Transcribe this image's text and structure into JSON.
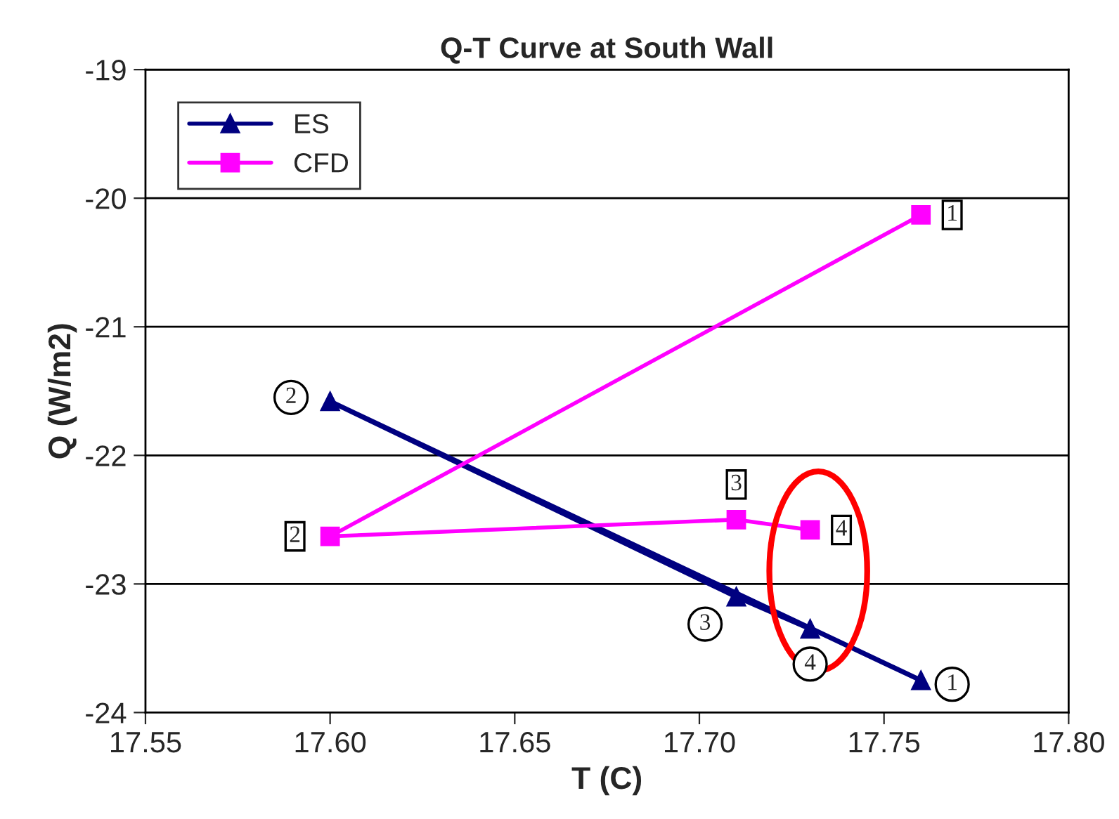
{
  "chart_data": {
    "type": "line",
    "title": "Q-T Curve at South Wall",
    "xlabel": "T (C)",
    "ylabel": "Q (W/m2)",
    "xlim": [
      17.55,
      17.8
    ],
    "xticks": [
      {
        "value": 17.55,
        "label": "17.55"
      },
      {
        "value": 17.6,
        "label": "17.60"
      },
      {
        "value": 17.65,
        "label": "17.65"
      },
      {
        "value": 17.7,
        "label": "17.70"
      },
      {
        "value": 17.75,
        "label": "17.75"
      },
      {
        "value": 17.8,
        "label": "17.80"
      }
    ],
    "ylim": [
      -24,
      -19
    ],
    "yticks": [
      -24,
      -23,
      -22,
      -21,
      -20,
      -19
    ],
    "grid": "y",
    "legend": "top left",
    "series": [
      {
        "name": "ES",
        "color": "#000080",
        "marker": "triangle",
        "x": [
          17.76,
          17.6,
          17.71,
          17.73
        ],
        "values": [
          -23.75,
          -21.58,
          -23.1,
          -23.35
        ]
      },
      {
        "name": "CFD",
        "color": "#ff00ff",
        "marker": "square",
        "x": [
          17.76,
          17.6,
          17.71,
          17.73
        ],
        "values": [
          -20.13,
          -22.63,
          -22.5,
          -22.58
        ]
      }
    ],
    "annotations": [
      {
        "text": "1",
        "x": 17.76,
        "y": -23.75
      },
      {
        "text": "2",
        "x": 17.6,
        "y": -21.58
      },
      {
        "text": "3",
        "x": 17.71,
        "y": -23.1
      },
      {
        "text": "4",
        "x": 17.73,
        "y": -23.35
      },
      {
        "text": "1",
        "x": 17.76,
        "y": -20.13
      },
      {
        "text": "2",
        "x": 17.6,
        "y": -22.63
      },
      {
        "text": "3",
        "x": 17.71,
        "y": -22.5
      },
      {
        "text": "4",
        "x": 17.73,
        "y": -22.58
      }
    ]
  }
}
